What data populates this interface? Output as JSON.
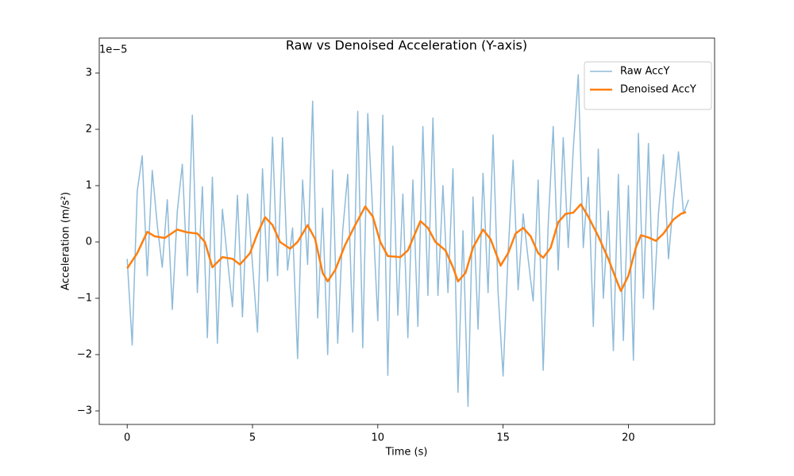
{
  "chart_data": {
    "type": "line",
    "title": "Raw vs Denoised Acceleration (Y-axis)",
    "x_label": "Time (s)",
    "y_label": "Acceleration (m/s²)",
    "y_offset_label": "1e−5",
    "xlim": [
      -1.115,
      23.44
    ],
    "xticks": [
      0,
      5,
      10,
      15,
      20
    ],
    "ylim": [
      -3.24,
      3.62
    ],
    "yticks": [
      {
        "value": -3,
        "label": "−3"
      },
      {
        "value": -2,
        "label": "−2"
      },
      {
        "value": -1,
        "label": "−1"
      },
      0,
      1,
      2,
      3
    ],
    "legend": "upper right",
    "series": [
      {
        "name": "Raw AccY",
        "color": "#1f77b4",
        "opacity": 0.5,
        "width": 1.5,
        "x": [
          0.0,
          0.2,
          0.4,
          0.6,
          0.8,
          1.0,
          1.2,
          1.4,
          1.6,
          1.8,
          2.0,
          2.2,
          2.4,
          2.6,
          2.8,
          3.0,
          3.2,
          3.4,
          3.6,
          3.8,
          4.0,
          4.2,
          4.4,
          4.6,
          4.8,
          5.0,
          5.2,
          5.4,
          5.6,
          5.8,
          6.0,
          6.2,
          6.4,
          6.6,
          6.8,
          7.0,
          7.2,
          7.4,
          7.6,
          7.8,
          8.0,
          8.2,
          8.4,
          8.6,
          8.8,
          9.0,
          9.2,
          9.4,
          9.6,
          9.8,
          10.0,
          10.2,
          10.4,
          10.6,
          10.8,
          11.0,
          11.2,
          11.4,
          11.6,
          11.8,
          12.0,
          12.2,
          12.4,
          12.6,
          12.8,
          13.0,
          13.2,
          13.4,
          13.6,
          13.8,
          14.0,
          14.2,
          14.4,
          14.6,
          14.8,
          15.0,
          15.2,
          15.4,
          15.6,
          15.8,
          16.0,
          16.2,
          16.4,
          16.6,
          16.8,
          17.0,
          17.2,
          17.4,
          17.6,
          17.8,
          18.0,
          18.2,
          18.4,
          18.6,
          18.8,
          19.0,
          19.2,
          19.4,
          19.6,
          19.8,
          20.0,
          20.2,
          20.4,
          20.6,
          20.8,
          21.0,
          21.2,
          21.4,
          21.6,
          21.8,
          22.0,
          22.2,
          22.4
        ],
        "values": [
          -0.3,
          -1.83,
          0.9,
          1.53,
          -0.6,
          1.27,
          0.3,
          -0.45,
          0.75,
          -1.2,
          0.55,
          1.38,
          -0.6,
          2.25,
          -0.9,
          0.98,
          -1.7,
          1.15,
          -1.8,
          0.58,
          -0.3,
          -1.15,
          0.83,
          -1.33,
          0.85,
          -0.4,
          -1.6,
          1.3,
          -0.7,
          1.86,
          -0.6,
          1.85,
          -0.5,
          0.25,
          -2.07,
          1.1,
          -0.4,
          2.5,
          -1.35,
          0.6,
          -2.0,
          1.28,
          -1.8,
          0.2,
          1.2,
          -1.6,
          2.32,
          -1.88,
          2.28,
          0.5,
          -1.4,
          2.25,
          -2.37,
          1.7,
          -1.3,
          0.85,
          -1.7,
          1.1,
          -1.5,
          2.05,
          -0.95,
          2.2,
          -0.95,
          1.0,
          -0.9,
          1.3,
          -2.67,
          0.2,
          -2.92,
          0.8,
          -1.55,
          1.22,
          -0.9,
          1.9,
          -0.9,
          -2.38,
          -0.2,
          1.45,
          -0.85,
          0.5,
          -0.3,
          -1.05,
          1.1,
          -2.28,
          0.3,
          2.05,
          -0.5,
          1.85,
          -0.1,
          1.65,
          2.97,
          -0.1,
          1.15,
          -1.5,
          1.65,
          -1.0,
          0.55,
          -1.93,
          1.2,
          -1.75,
          1.0,
          -2.1,
          1.93,
          -1.0,
          1.75,
          -1.2,
          0.5,
          1.55,
          -0.3,
          0.75,
          1.6,
          0.5,
          0.75
        ]
      },
      {
        "name": "Denoised AccY",
        "color": "#ff7f0e",
        "opacity": 1,
        "width": 2.5,
        "x": [
          0,
          0.4,
          0.8,
          1.1,
          1.5,
          2.0,
          2.4,
          2.8,
          3.1,
          3.4,
          3.8,
          4.2,
          4.5,
          4.9,
          5.2,
          5.5,
          5.8,
          6.1,
          6.5,
          6.8,
          7.2,
          7.5,
          7.8,
          8.0,
          8.3,
          8.7,
          9.1,
          9.5,
          9.8,
          10.1,
          10.4,
          10.9,
          11.2,
          11.7,
          12.0,
          12.3,
          12.7,
          13.0,
          13.2,
          13.5,
          13.8,
          14.2,
          14.5,
          14.9,
          15.2,
          15.5,
          15.8,
          16.1,
          16.4,
          16.6,
          16.9,
          17.2,
          17.5,
          17.8,
          18.1,
          18.4,
          18.8,
          19.2,
          19.5,
          19.7,
          20.0,
          20.3,
          20.5,
          20.8,
          21.1,
          21.4,
          21.8,
          22.1,
          22.3
        ],
        "values": [
          -0.47,
          -0.2,
          0.18,
          0.1,
          0.07,
          0.22,
          0.17,
          0.15,
          0.0,
          -0.45,
          -0.27,
          -0.3,
          -0.4,
          -0.2,
          0.15,
          0.44,
          0.3,
          0.0,
          -0.12,
          0.0,
          0.3,
          0.05,
          -0.55,
          -0.7,
          -0.5,
          -0.05,
          0.3,
          0.63,
          0.45,
          0.0,
          -0.25,
          -0.27,
          -0.15,
          0.37,
          0.25,
          0.0,
          -0.15,
          -0.45,
          -0.7,
          -0.55,
          -0.1,
          0.22,
          0.05,
          -0.42,
          -0.2,
          0.15,
          0.25,
          0.1,
          -0.2,
          -0.28,
          -0.1,
          0.35,
          0.5,
          0.52,
          0.67,
          0.45,
          0.1,
          -0.3,
          -0.65,
          -0.87,
          -0.6,
          -0.1,
          0.12,
          0.08,
          0.02,
          0.15,
          0.4,
          0.5,
          0.53
        ]
      }
    ]
  }
}
